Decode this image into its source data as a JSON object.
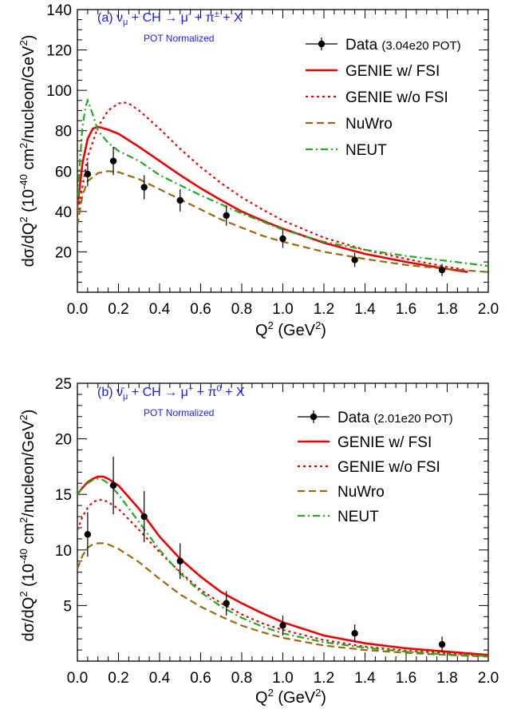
{
  "chart_data": [
    {
      "type": "line",
      "panel": "(a)",
      "title": "(a) ν_μ + CH → μ⁻ + π^± + X",
      "title_parts": {
        "tag": "(a) ",
        "nu": "ν",
        "nu_sub": "μ",
        "mid": " + CH → μ",
        "mu_sup": "-",
        "pi": " + π",
        "pi_sup": "±",
        "tail": " + X"
      },
      "subtitle": "POT Normalized",
      "xlabel_parts": {
        "base": "Q",
        "sup": "2",
        "tail": " (GeV",
        "tail_sup": "2",
        "close": ")"
      },
      "ylabel_parts": {
        "a": "dσ/dQ",
        "a_sup": "2",
        "b": " (10",
        "b_sup": "-40",
        "c": " cm",
        "c_sup": "2",
        "d": "/nucleon/GeV",
        "d_sup": "2",
        "e": ")"
      },
      "xlim": [
        0,
        2.0
      ],
      "ylim": [
        0,
        140
      ],
      "x_ticks": [
        "0.0",
        "0.2",
        "0.4",
        "0.6",
        "0.8",
        "1.0",
        "1.2",
        "1.4",
        "1.6",
        "1.8",
        "2.0"
      ],
      "y_ticks": [
        "20",
        "40",
        "60",
        "80",
        "100",
        "120",
        "140"
      ],
      "data": {
        "name": "Data",
        "note": "(3.04e20 POT)",
        "color": "#000000",
        "x": [
          0.05,
          0.175,
          0.325,
          0.5,
          0.725,
          1.0,
          1.35,
          1.775
        ],
        "y": [
          58.5,
          65.0,
          52.0,
          45.5,
          38.0,
          26.5,
          16.0,
          11.0
        ],
        "err": [
          6.0,
          7.0,
          6.0,
          5.5,
          5.0,
          4.5,
          3.5,
          3.0
        ]
      },
      "series": [
        {
          "name": "GENIE w/ FSI",
          "color": "#ee0000",
          "dash": "solid",
          "x": [
            0,
            0.025,
            0.05,
            0.075,
            0.1,
            0.15,
            0.2,
            0.3,
            0.4,
            0.5,
            0.6,
            0.7,
            0.8,
            0.9,
            1.0,
            1.2,
            1.4,
            1.6,
            1.8,
            1.9
          ],
          "y": [
            42,
            64,
            76,
            81,
            82,
            80.5,
            78.5,
            72,
            65,
            58,
            51.5,
            45.5,
            40,
            35.5,
            31.5,
            24.5,
            19,
            15,
            11.5,
            10
          ]
        },
        {
          "name": "GENIE w/o FSI",
          "color": "#ee0000",
          "dash": "dot",
          "x": [
            0,
            0.05,
            0.1,
            0.15,
            0.2,
            0.225,
            0.25,
            0.3,
            0.4,
            0.5,
            0.6,
            0.7,
            0.8,
            0.9,
            1.0,
            1.2,
            1.4,
            1.6,
            1.8,
            1.9
          ],
          "y": [
            38,
            67,
            82,
            90,
            93.5,
            94,
            93.5,
            90,
            81,
            71,
            62,
            54,
            47,
            41,
            35.5,
            27,
            21,
            16.5,
            12.5,
            11
          ]
        },
        {
          "name": "NuWro",
          "color": "#a0660a",
          "dash": "dash",
          "x": [
            0,
            0.025,
            0.05,
            0.1,
            0.15,
            0.2,
            0.3,
            0.4,
            0.5,
            0.6,
            0.7,
            0.8,
            0.9,
            1.0,
            1.2,
            1.4,
            1.6,
            1.8,
            2.0
          ],
          "y": [
            33,
            48,
            55,
            59,
            60,
            59.5,
            56,
            51,
            46,
            41,
            36,
            32,
            28,
            25,
            20,
            16.5,
            13.5,
            11.5,
            10
          ]
        },
        {
          "name": "NEUT",
          "color": "#22aa22",
          "dash": "dashdot",
          "x": [
            0,
            0.01,
            0.025,
            0.04,
            0.05,
            0.075,
            0.1,
            0.15,
            0.2,
            0.3,
            0.4,
            0.5,
            0.6,
            0.7,
            0.8,
            0.9,
            1.0,
            1.2,
            1.4,
            1.6,
            1.8,
            2.0
          ],
          "y": [
            40,
            62,
            82,
            92,
            95,
            88,
            80,
            74,
            70,
            65,
            58,
            53,
            48,
            43.5,
            39,
            35,
            31,
            25,
            21,
            18,
            15.5,
            13
          ]
        }
      ]
    },
    {
      "type": "line",
      "panel": "(b)",
      "title": "(b) ν̄_μ + CH → μ⁺ + π⁰ + X",
      "title_parts": {
        "tag": "(b) ",
        "nu": "ν̄",
        "nu_sub": "μ",
        "mid": " + CH → μ",
        "mu_sup": "+",
        "pi": " + π",
        "pi_sup": "0",
        "tail": " + X"
      },
      "subtitle": "POT Normalized",
      "xlabel_parts": {
        "base": "Q",
        "sup": "2",
        "tail": " (GeV",
        "tail_sup": "2",
        "close": ")"
      },
      "ylabel_parts": {
        "a": "dσ/dQ",
        "a_sup": "2",
        "b": " (10",
        "b_sup": "-40",
        "c": " cm",
        "c_sup": "2",
        "d": "/nucleon/GeV",
        "d_sup": "2",
        "e": ")"
      },
      "xlim": [
        0,
        2.0
      ],
      "ylim": [
        0,
        25
      ],
      "x_ticks": [
        "0.0",
        "0.2",
        "0.4",
        "0.6",
        "0.8",
        "1.0",
        "1.2",
        "1.4",
        "1.6",
        "1.8",
        "2.0"
      ],
      "y_ticks": [
        "5",
        "10",
        "15",
        "20",
        "25"
      ],
      "data": {
        "name": "Data",
        "note": "(2.01e20 POT)",
        "color": "#000000",
        "x": [
          0.05,
          0.175,
          0.325,
          0.5,
          0.725,
          1.0,
          1.35,
          1.775
        ],
        "y": [
          11.4,
          15.8,
          13.0,
          9.0,
          5.2,
          3.2,
          2.5,
          1.5
        ],
        "err": [
          2.0,
          2.6,
          2.3,
          1.6,
          1.1,
          0.9,
          0.8,
          0.7
        ]
      },
      "series": [
        {
          "name": "GENIE w/ FSI",
          "color": "#ee0000",
          "dash": "solid",
          "x": [
            0,
            0.025,
            0.05,
            0.075,
            0.1,
            0.125,
            0.15,
            0.2,
            0.3,
            0.4,
            0.5,
            0.6,
            0.7,
            0.8,
            0.9,
            1.0,
            1.2,
            1.4,
            1.6,
            1.8,
            2.0
          ],
          "y": [
            15.0,
            15.6,
            16.1,
            16.4,
            16.6,
            16.6,
            16.4,
            15.8,
            13.7,
            11.2,
            9.2,
            7.6,
            6.2,
            5.2,
            4.3,
            3.5,
            2.3,
            1.6,
            1.15,
            0.85,
            0.55
          ]
        },
        {
          "name": "GENIE w/o FSI",
          "color": "#ee0000",
          "dash": "dot",
          "x": [
            0,
            0.025,
            0.05,
            0.075,
            0.1,
            0.125,
            0.15,
            0.2,
            0.3,
            0.4,
            0.5,
            0.6,
            0.7,
            0.8,
            0.9,
            1.0,
            1.2,
            1.4,
            1.6,
            1.8,
            2.0
          ],
          "y": [
            11.8,
            13.0,
            13.8,
            14.3,
            14.5,
            14.5,
            14.3,
            13.7,
            11.8,
            9.8,
            8.0,
            6.4,
            5.2,
            4.2,
            3.4,
            2.8,
            1.9,
            1.3,
            0.95,
            0.7,
            0.5
          ]
        },
        {
          "name": "NuWro",
          "color": "#a0660a",
          "dash": "dash",
          "x": [
            0,
            0.025,
            0.05,
            0.075,
            0.1,
            0.125,
            0.15,
            0.2,
            0.3,
            0.4,
            0.5,
            0.6,
            0.7,
            0.8,
            0.9,
            1.0,
            1.2,
            1.4,
            1.6,
            1.8,
            2.0
          ],
          "y": [
            8.3,
            9.5,
            10.2,
            10.5,
            10.6,
            10.6,
            10.5,
            10.1,
            8.9,
            7.4,
            6.0,
            4.9,
            4.0,
            3.2,
            2.6,
            2.1,
            1.4,
            1.0,
            0.75,
            0.55,
            0.4
          ]
        },
        {
          "name": "NEUT",
          "color": "#22aa22",
          "dash": "dashdot",
          "x": [
            0,
            0.025,
            0.05,
            0.075,
            0.1,
            0.125,
            0.15,
            0.2,
            0.3,
            0.4,
            0.5,
            0.6,
            0.7,
            0.8,
            0.9,
            1.0,
            1.2,
            1.4,
            1.6,
            1.8,
            2.0
          ],
          "y": [
            15.0,
            15.6,
            16.0,
            16.3,
            16.4,
            16.3,
            16.0,
            15.0,
            12.5,
            10.0,
            7.9,
            6.2,
            4.9,
            3.9,
            3.1,
            2.5,
            1.7,
            1.2,
            0.85,
            0.6,
            0.45
          ]
        }
      ]
    }
  ]
}
